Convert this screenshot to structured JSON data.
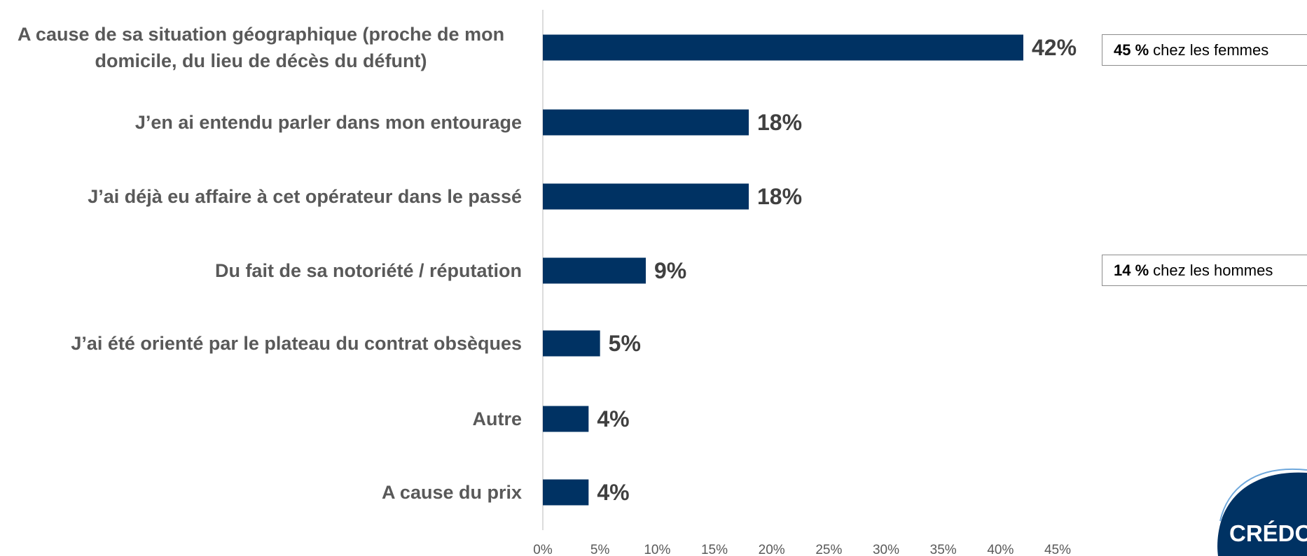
{
  "chart_data": {
    "type": "bar",
    "orientation": "horizontal",
    "categories": [
      "A cause de sa situation géographique (proche de mon domicile, du lieu de décès du défunt)",
      "J’en ai entendu parler dans mon entourage",
      "J’ai déjà eu affaire à cet opérateur dans le passé",
      "Du fait de sa notoriété / réputation",
      "J’ai été orienté par le plateau du contrat obsèques",
      "Autre",
      "A cause du prix"
    ],
    "values": [
      42,
      18,
      18,
      9,
      5,
      4,
      4
    ],
    "value_labels": [
      "42%",
      "18%",
      "18%",
      "9%",
      "5%",
      "4%",
      "4%"
    ],
    "color": "#003263",
    "xlim": [
      0,
      45
    ],
    "xticks": [
      {
        "value": 0,
        "label": "0%"
      },
      {
        "value": 5,
        "label": "5%"
      },
      {
        "value": 10,
        "label": "10%"
      },
      {
        "value": 15,
        "label": "15%"
      },
      {
        "value": 20,
        "label": "20%"
      },
      {
        "value": 25,
        "label": "25%"
      },
      {
        "value": 30,
        "label": "30%"
      },
      {
        "value": 35,
        "label": "35%"
      },
      {
        "value": 40,
        "label": "40%"
      },
      {
        "value": 45,
        "label": "45%"
      }
    ],
    "annotations": [
      {
        "bold": "45 %",
        "text": "chez les femmes"
      },
      {
        "bold": "14 %",
        "text": "chez les hommes"
      }
    ],
    "logo": "CRÉDOC"
  }
}
